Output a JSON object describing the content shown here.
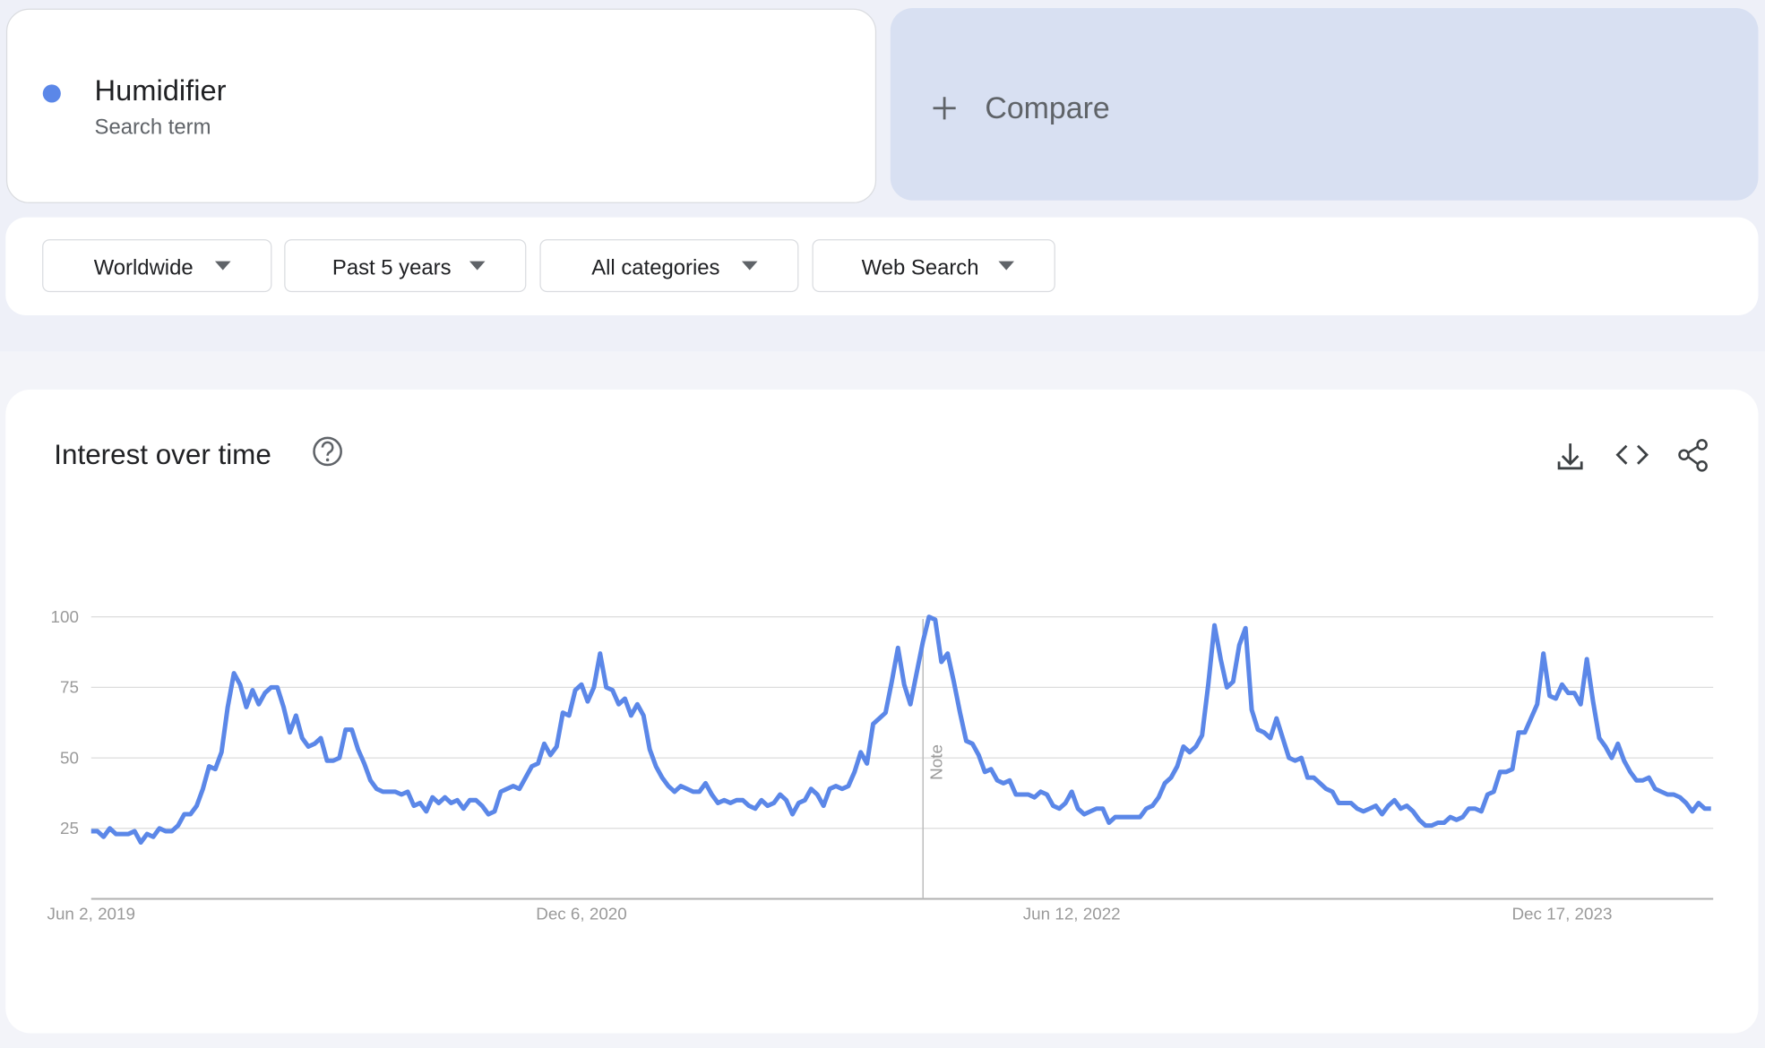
{
  "header": {
    "term_type": "Search term",
    "compare": "Compare"
  },
  "filters": [
    "Worldwide",
    "Past 5 years",
    "All categories",
    "Web Search"
  ],
  "chart_data": {
    "type": "line",
    "title": "Interest over time",
    "note": "Note",
    "categories": [
      "Jun 2, 2019",
      null,
      null,
      null,
      null,
      null,
      null,
      null,
      null,
      null,
      null,
      null,
      null,
      null,
      null,
      null,
      null,
      null,
      null,
      null,
      null,
      null,
      null,
      null,
      null,
      null,
      null,
      null,
      null,
      null,
      null,
      null,
      null,
      null,
      null,
      null,
      null,
      null,
      null,
      null,
      null,
      null,
      null,
      null,
      null,
      null,
      null,
      null,
      null,
      null,
      null,
      null,
      null,
      null,
      null,
      null,
      null,
      null,
      null,
      null,
      null,
      null,
      null,
      null,
      null,
      null,
      null,
      null,
      null,
      null,
      null,
      null,
      null,
      null,
      null,
      null,
      null,
      null,
      null,
      "Dec 6, 2020",
      null,
      null,
      null,
      null,
      null,
      null,
      null,
      null,
      null,
      null,
      null,
      null,
      null,
      null,
      null,
      null,
      null,
      null,
      null,
      null,
      null,
      null,
      null,
      null,
      null,
      null,
      null,
      null,
      null,
      null,
      null,
      null,
      null,
      null,
      null,
      null,
      null,
      null,
      null,
      null,
      null,
      null,
      null,
      null,
      null,
      null,
      null,
      null,
      null,
      null,
      null,
      null,
      null,
      null,
      null,
      null,
      null,
      null,
      null,
      null,
      null,
      null,
      null,
      null,
      null,
      null,
      null,
      null,
      null,
      null,
      null,
      null,
      null,
      null,
      null,
      null,
      null,
      null,
      "Jun 12, 2022",
      null,
      null,
      null,
      null,
      null,
      null,
      null,
      null,
      null,
      null,
      null,
      null,
      null,
      null,
      null,
      null,
      null,
      null,
      null,
      null,
      null,
      null,
      null,
      null,
      null,
      null,
      null,
      null,
      null,
      null,
      null,
      null,
      null,
      null,
      null,
      null,
      null,
      null,
      null,
      null,
      null,
      null,
      null,
      null,
      null,
      null,
      null,
      null,
      null,
      null,
      null,
      null,
      null,
      null,
      null,
      null,
      null,
      null,
      null,
      null,
      null,
      null,
      null,
      null,
      null,
      null,
      null,
      null,
      null,
      null,
      null,
      null,
      null,
      null,
      null,
      null,
      null,
      null,
      "Dec 17, 2023",
      null,
      null,
      null,
      null,
      null,
      null,
      null,
      null,
      null,
      null,
      null,
      null,
      null,
      null,
      null,
      null,
      null,
      null,
      null,
      null,
      null,
      null,
      null,
      null
    ],
    "series": [
      {
        "name": "Humidifier",
        "color": "#5b87e8",
        "values": [
          24,
          24,
          22,
          25,
          23,
          23,
          23,
          24,
          20,
          23,
          22,
          25,
          24,
          24,
          26,
          30,
          30,
          33,
          39,
          47,
          46,
          52,
          68,
          80,
          76,
          68,
          74,
          69,
          73,
          75,
          75,
          68,
          59,
          65,
          57,
          54,
          55,
          57,
          49,
          49,
          50,
          60,
          60,
          53,
          48,
          42,
          39,
          38,
          38,
          38,
          37,
          38,
          33,
          34,
          31,
          36,
          34,
          36,
          34,
          35,
          32,
          35,
          35,
          33,
          30,
          31,
          38,
          39,
          40,
          39,
          43,
          47,
          48,
          55,
          51,
          54,
          66,
          65,
          74,
          76,
          70,
          75,
          87,
          75,
          74,
          69,
          71,
          65,
          69,
          65,
          53,
          47,
          43,
          40,
          38,
          40,
          39,
          38,
          38,
          41,
          37,
          34,
          35,
          34,
          35,
          35,
          33,
          32,
          35,
          33,
          34,
          37,
          35,
          30,
          34,
          35,
          39,
          37,
          33,
          39,
          40,
          39,
          40,
          45,
          52,
          48,
          62,
          64,
          66,
          77,
          89,
          76,
          69,
          80,
          91,
          100,
          99,
          84,
          87,
          77,
          66,
          56,
          55,
          51,
          45,
          46,
          42,
          41,
          42,
          37,
          37,
          37,
          36,
          38,
          37,
          33,
          32,
          34,
          38,
          32,
          30,
          31,
          32,
          32,
          27,
          29,
          29,
          29,
          29,
          29,
          32,
          33,
          36,
          41,
          43,
          47,
          54,
          52,
          54,
          58,
          76,
          97,
          85,
          75,
          77,
          90,
          96,
          67,
          60,
          59,
          57,
          64,
          57,
          50,
          49,
          50,
          43,
          43,
          41,
          39,
          38,
          34,
          34,
          34,
          32,
          31,
          32,
          33,
          30,
          33,
          35,
          32,
          33,
          31,
          28,
          26,
          26,
          27,
          27,
          29,
          28,
          29,
          32,
          32,
          31,
          37,
          38,
          45,
          45,
          46,
          59,
          59,
          64,
          69,
          87,
          72,
          71,
          76,
          73,
          73,
          69,
          85,
          70,
          57,
          54,
          50,
          55,
          49,
          45,
          42,
          42,
          43,
          39,
          38,
          37,
          37,
          36,
          34,
          31,
          34,
          32,
          32
        ]
      }
    ],
    "ylim": [
      0,
      100
    ],
    "yticks": [
      25,
      50,
      75,
      100
    ],
    "grid": true
  }
}
